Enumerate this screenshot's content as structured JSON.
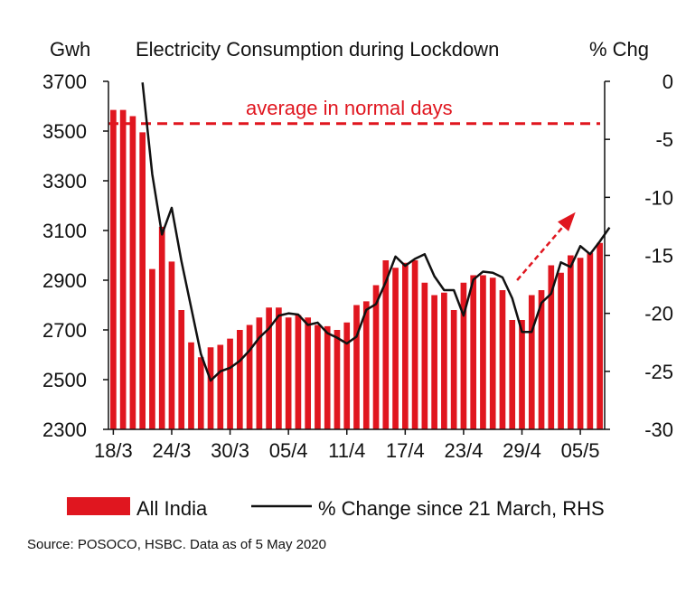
{
  "chart_data": {
    "type": "bar",
    "title": "Electricity Consumption during Lockdown",
    "left_axis_label": "Gwh",
    "right_axis_label": "% Chg",
    "x_ticks": [
      "18/3",
      "24/3",
      "30/3",
      "05/4",
      "11/4",
      "17/4",
      "23/4",
      "29/4",
      "05/5"
    ],
    "left_ticks": [
      "3700",
      "3500",
      "3300",
      "3100",
      "2900",
      "2700",
      "2500",
      "2300"
    ],
    "right_ticks": [
      "0",
      "-5",
      "-10",
      "-15",
      "-20",
      "-25",
      "-30"
    ],
    "ylim_left": [
      2300,
      3700
    ],
    "ylim_right": [
      -30,
      0
    ],
    "series": [
      {
        "name": "All India",
        "type": "bar",
        "axis": "left",
        "color": "#e0161f",
        "values": [
          3585,
          3585,
          3560,
          3495,
          2945,
          3115,
          2975,
          2780,
          2650,
          2590,
          2630,
          2640,
          2665,
          2700,
          2720,
          2750,
          2790,
          2790,
          2750,
          2760,
          2750,
          2720,
          2715,
          2700,
          2730,
          2800,
          2815,
          2880,
          2980,
          2950,
          2970,
          2980,
          2890,
          2840,
          2850,
          2780,
          2890,
          2920,
          2920,
          2910,
          2860,
          2740,
          2740,
          2840,
          2860,
          2960,
          2930,
          3000,
          2990,
          3010,
          3050
        ]
      },
      {
        "name": "% Change since 21 March, RHS",
        "type": "line",
        "axis": "right",
        "color": "#111111",
        "x_start_index": 3,
        "values": [
          -0.1,
          -8.0,
          -13.2,
          -10.9,
          -15.5,
          -19.5,
          -23.5,
          -25.8,
          -25.0,
          -24.7,
          -24.1,
          -23.2,
          -22.1,
          -21.3,
          -20.2,
          -20.0,
          -20.1,
          -21.0,
          -20.8,
          -21.7,
          -22.1,
          -22.6,
          -22.0,
          -19.7,
          -19.2,
          -17.3,
          -15.1,
          -15.9,
          -15.3,
          -14.9,
          -16.8,
          -18.0,
          -18.0,
          -20.2,
          -17.1,
          -16.4,
          -16.5,
          -16.9,
          -18.7,
          -21.6,
          -21.6,
          -19.1,
          -18.3,
          -15.6,
          -16.0,
          -14.2,
          -14.9,
          -13.8,
          -12.6
        ]
      }
    ],
    "reference_line": {
      "label": "average in normal days",
      "value": 3530,
      "axis": "left",
      "color": "#e0161f",
      "style": "dashed"
    },
    "trend_arrow": {
      "color": "#e0161f",
      "style": "dashed"
    },
    "legend": {
      "position": "bottom",
      "entries": [
        "All India",
        "% Change since 21 March, RHS"
      ]
    }
  },
  "source": "Source: POSOCO, HSBC. Data as of 5 May 2020"
}
